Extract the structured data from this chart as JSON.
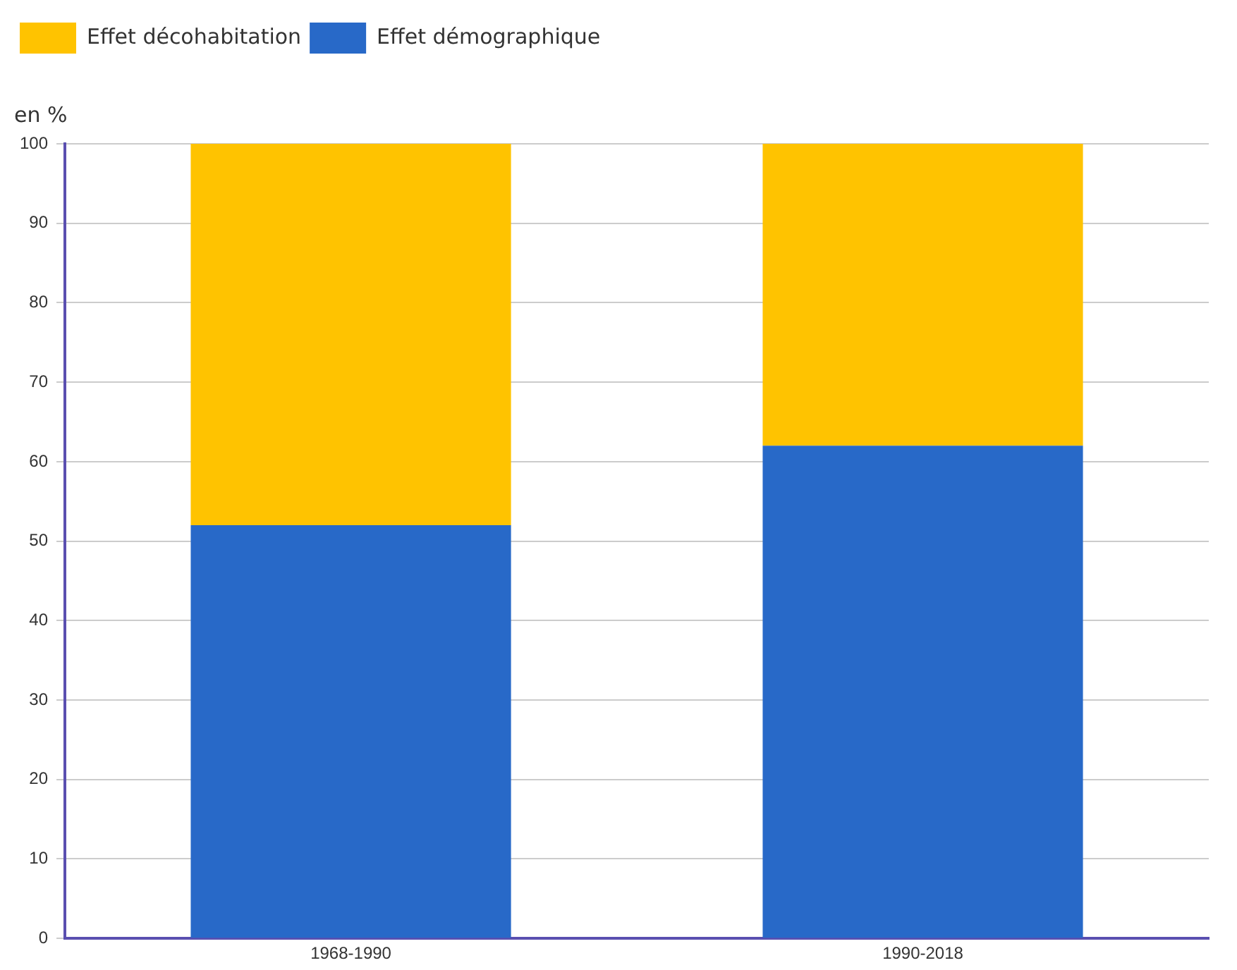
{
  "chart_data": {
    "type": "bar",
    "stacked": true,
    "ylabel": "en %",
    "categories": [
      "1968-1990",
      "1990-2018"
    ],
    "series": [
      {
        "name": "Effet démographique",
        "color": "#2869c8",
        "values": [
          52,
          62
        ]
      },
      {
        "name": "Effet décohabitation",
        "color": "#ffc300",
        "values": [
          48,
          38
        ]
      }
    ],
    "ylim": [
      0,
      100
    ],
    "yticks": [
      0,
      10,
      20,
      30,
      40,
      50,
      60,
      70,
      80,
      90,
      100
    ],
    "grid": "y",
    "legend": "top left"
  }
}
